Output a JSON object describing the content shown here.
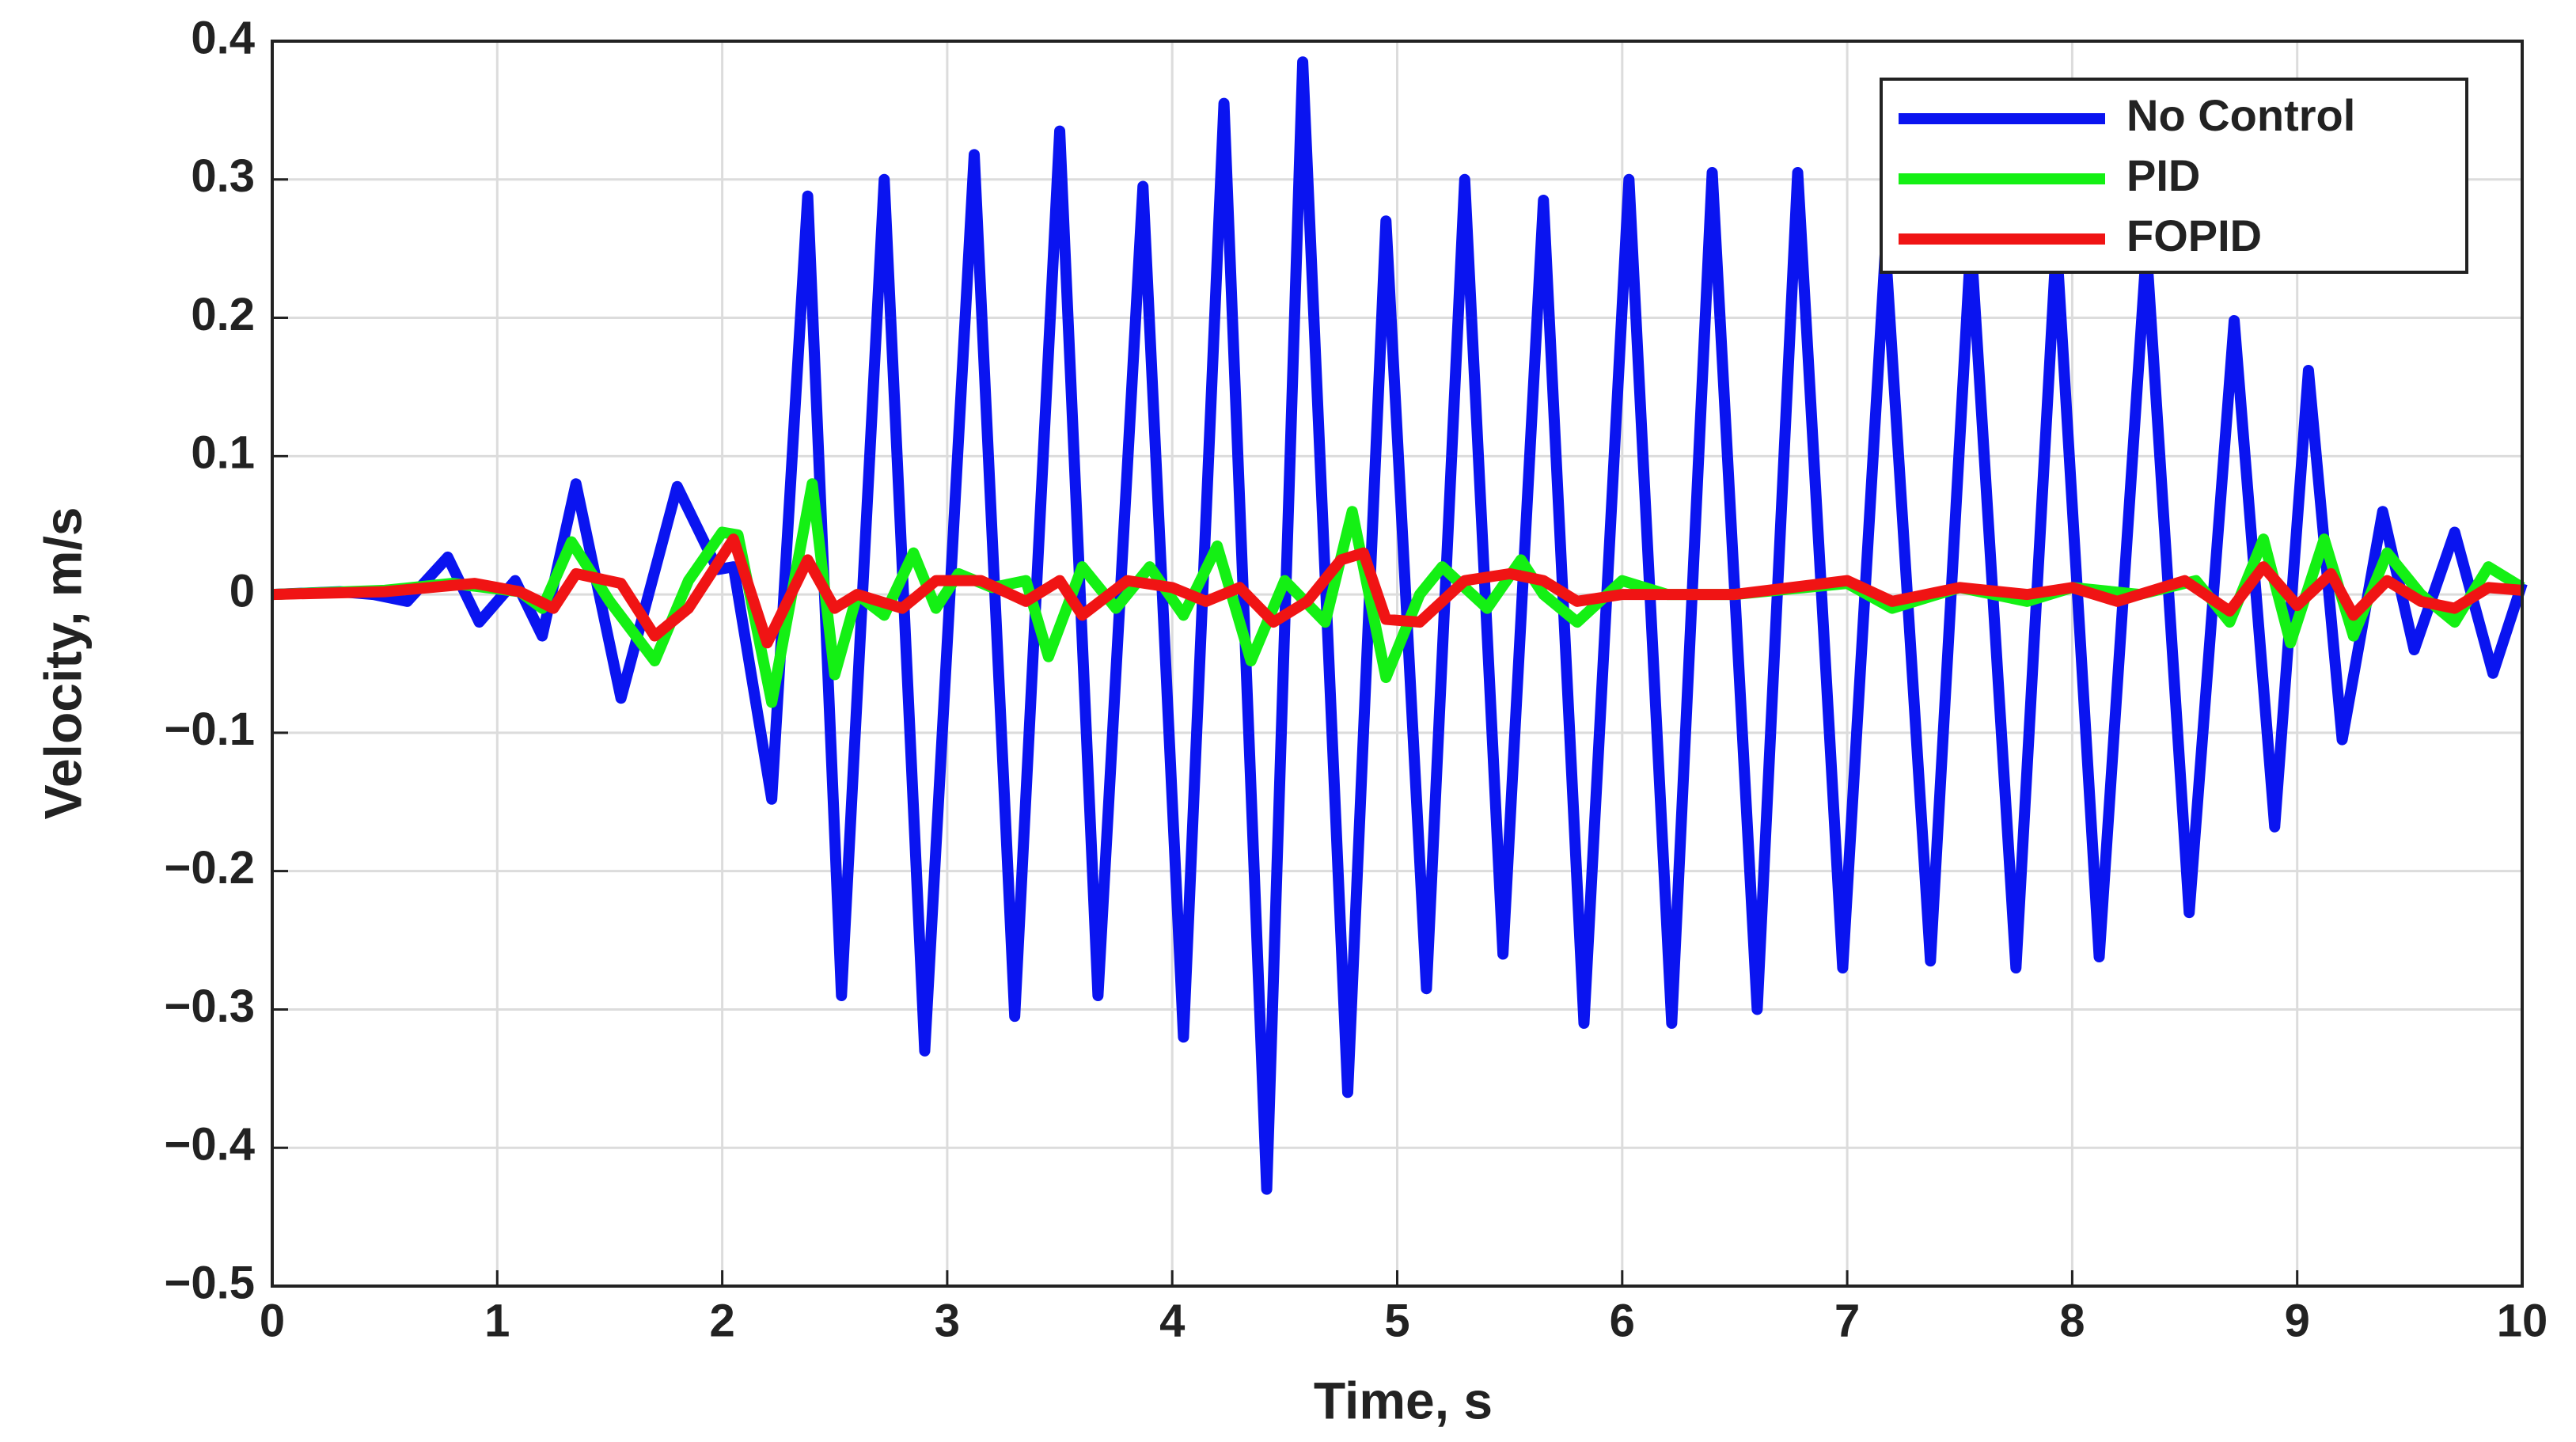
{
  "chart_data": {
    "type": "line",
    "x_label": "Time, s",
    "y_label": "Velocity, m/s",
    "xlim": [
      0,
      10
    ],
    "ylim": [
      -0.5,
      0.4
    ],
    "xticks": [
      0,
      1,
      2,
      3,
      4,
      5,
      6,
      7,
      8,
      9,
      10
    ],
    "yticks": [
      {
        "value": -0.5,
        "label": "−0.5"
      },
      {
        "value": -0.4,
        "label": "−0.4"
      },
      {
        "value": -0.3,
        "label": "−0.3"
      },
      {
        "value": -0.2,
        "label": "−0.2"
      },
      {
        "value": -0.1,
        "label": "−0.1"
      },
      0,
      0.1,
      0.2,
      0.3,
      0.4
    ],
    "grid": true,
    "legend": "upper right",
    "series": [
      {
        "name": "No Control",
        "color": "#0a14f0",
        "x": [
          0,
          0.3,
          0.45,
          0.6,
          0.78,
          0.92,
          1.08,
          1.2,
          1.35,
          1.55,
          1.8,
          1.98,
          2.05,
          2.22,
          2.38,
          2.53,
          2.72,
          2.9,
          3.12,
          3.3,
          3.5,
          3.67,
          3.87,
          4.05,
          4.23,
          4.42,
          4.58,
          4.78,
          4.95,
          5.13,
          5.3,
          5.47,
          5.65,
          5.83,
          6.03,
          6.22,
          6.4,
          6.6,
          6.78,
          6.98,
          7.17,
          7.37,
          7.55,
          7.75,
          7.93,
          8.12,
          8.33,
          8.52,
          8.72,
          8.9,
          9.05,
          9.2,
          9.38,
          9.52,
          9.7,
          9.87,
          10
        ],
        "values": [
          0,
          0.002,
          0,
          -0.005,
          0.027,
          -0.02,
          0.01,
          -0.03,
          0.08,
          -0.075,
          0.078,
          0.018,
          0.02,
          -0.148,
          0.288,
          -0.29,
          0.3,
          -0.33,
          0.318,
          -0.305,
          0.335,
          -0.29,
          0.295,
          -0.32,
          0.355,
          -0.43,
          0.385,
          -0.36,
          0.27,
          -0.285,
          0.3,
          -0.26,
          0.285,
          -0.31,
          0.3,
          -0.31,
          0.305,
          -0.3,
          0.305,
          -0.27,
          0.25,
          -0.265,
          0.255,
          -0.27,
          0.255,
          -0.262,
          0.25,
          -0.23,
          0.198,
          -0.168,
          0.162,
          -0.105,
          0.06,
          -0.04,
          0.045,
          -0.057,
          0.008
        ]
      },
      {
        "name": "PID",
        "color": "#14f014",
        "x": [
          0,
          0.5,
          0.8,
          1.1,
          1.2,
          1.33,
          1.5,
          1.7,
          1.85,
          2.0,
          2.07,
          2.22,
          2.4,
          2.5,
          2.6,
          2.72,
          2.85,
          2.95,
          3.05,
          3.2,
          3.35,
          3.45,
          3.6,
          3.75,
          3.9,
          4.05,
          4.2,
          4.35,
          4.5,
          4.68,
          4.8,
          4.95,
          5.1,
          5.2,
          5.4,
          5.55,
          5.65,
          5.8,
          6.0,
          6.2,
          6.5,
          7.0,
          7.2,
          7.5,
          7.8,
          8.0,
          8.3,
          8.55,
          8.7,
          8.85,
          8.97,
          9.12,
          9.25,
          9.4,
          9.55,
          9.7,
          9.85,
          10
        ],
        "values": [
          0,
          0.003,
          0.008,
          0.002,
          -0.01,
          0.038,
          -0.005,
          -0.048,
          0.01,
          0.045,
          0.043,
          -0.078,
          0.08,
          -0.058,
          0.0,
          -0.015,
          0.03,
          -0.01,
          0.015,
          0.005,
          0.01,
          -0.045,
          0.02,
          -0.01,
          0.02,
          -0.015,
          0.035,
          -0.048,
          0.01,
          -0.02,
          0.06,
          -0.06,
          0.0,
          0.02,
          -0.01,
          0.025,
          0.0,
          -0.02,
          0.01,
          0.0,
          0.0,
          0.008,
          -0.01,
          0.005,
          -0.005,
          0.005,
          0.0,
          0.01,
          -0.02,
          0.04,
          -0.035,
          0.04,
          -0.03,
          0.03,
          0.0,
          -0.02,
          0.02,
          0.005
        ]
      },
      {
        "name": "FOPID",
        "color": "#f01414",
        "x": [
          0,
          0.5,
          0.9,
          1.1,
          1.25,
          1.35,
          1.55,
          1.7,
          1.85,
          2.05,
          2.2,
          2.38,
          2.5,
          2.6,
          2.8,
          2.95,
          3.15,
          3.35,
          3.5,
          3.6,
          3.8,
          4.0,
          4.15,
          4.3,
          4.45,
          4.6,
          4.75,
          4.85,
          4.95,
          5.1,
          5.3,
          5.5,
          5.65,
          5.8,
          6.0,
          6.5,
          7.0,
          7.2,
          7.5,
          7.8,
          8.0,
          8.2,
          8.5,
          8.7,
          8.85,
          9.0,
          9.15,
          9.25,
          9.4,
          9.55,
          9.7,
          9.85,
          10
        ],
        "values": [
          0,
          0.002,
          0.008,
          0.002,
          -0.01,
          0.015,
          0.008,
          -0.03,
          -0.01,
          0.04,
          -0.035,
          0.025,
          -0.01,
          0.0,
          -0.01,
          0.01,
          0.01,
          -0.005,
          0.01,
          -0.015,
          0.01,
          0.005,
          -0.005,
          0.005,
          -0.02,
          -0.005,
          0.025,
          0.03,
          -0.018,
          -0.02,
          0.01,
          0.015,
          0.01,
          -0.005,
          0.0,
          0.0,
          0.01,
          -0.005,
          0.005,
          0.0,
          0.005,
          -0.005,
          0.01,
          -0.012,
          0.02,
          -0.008,
          0.015,
          -0.015,
          0.01,
          -0.005,
          -0.01,
          0.005,
          0.003
        ]
      }
    ]
  }
}
